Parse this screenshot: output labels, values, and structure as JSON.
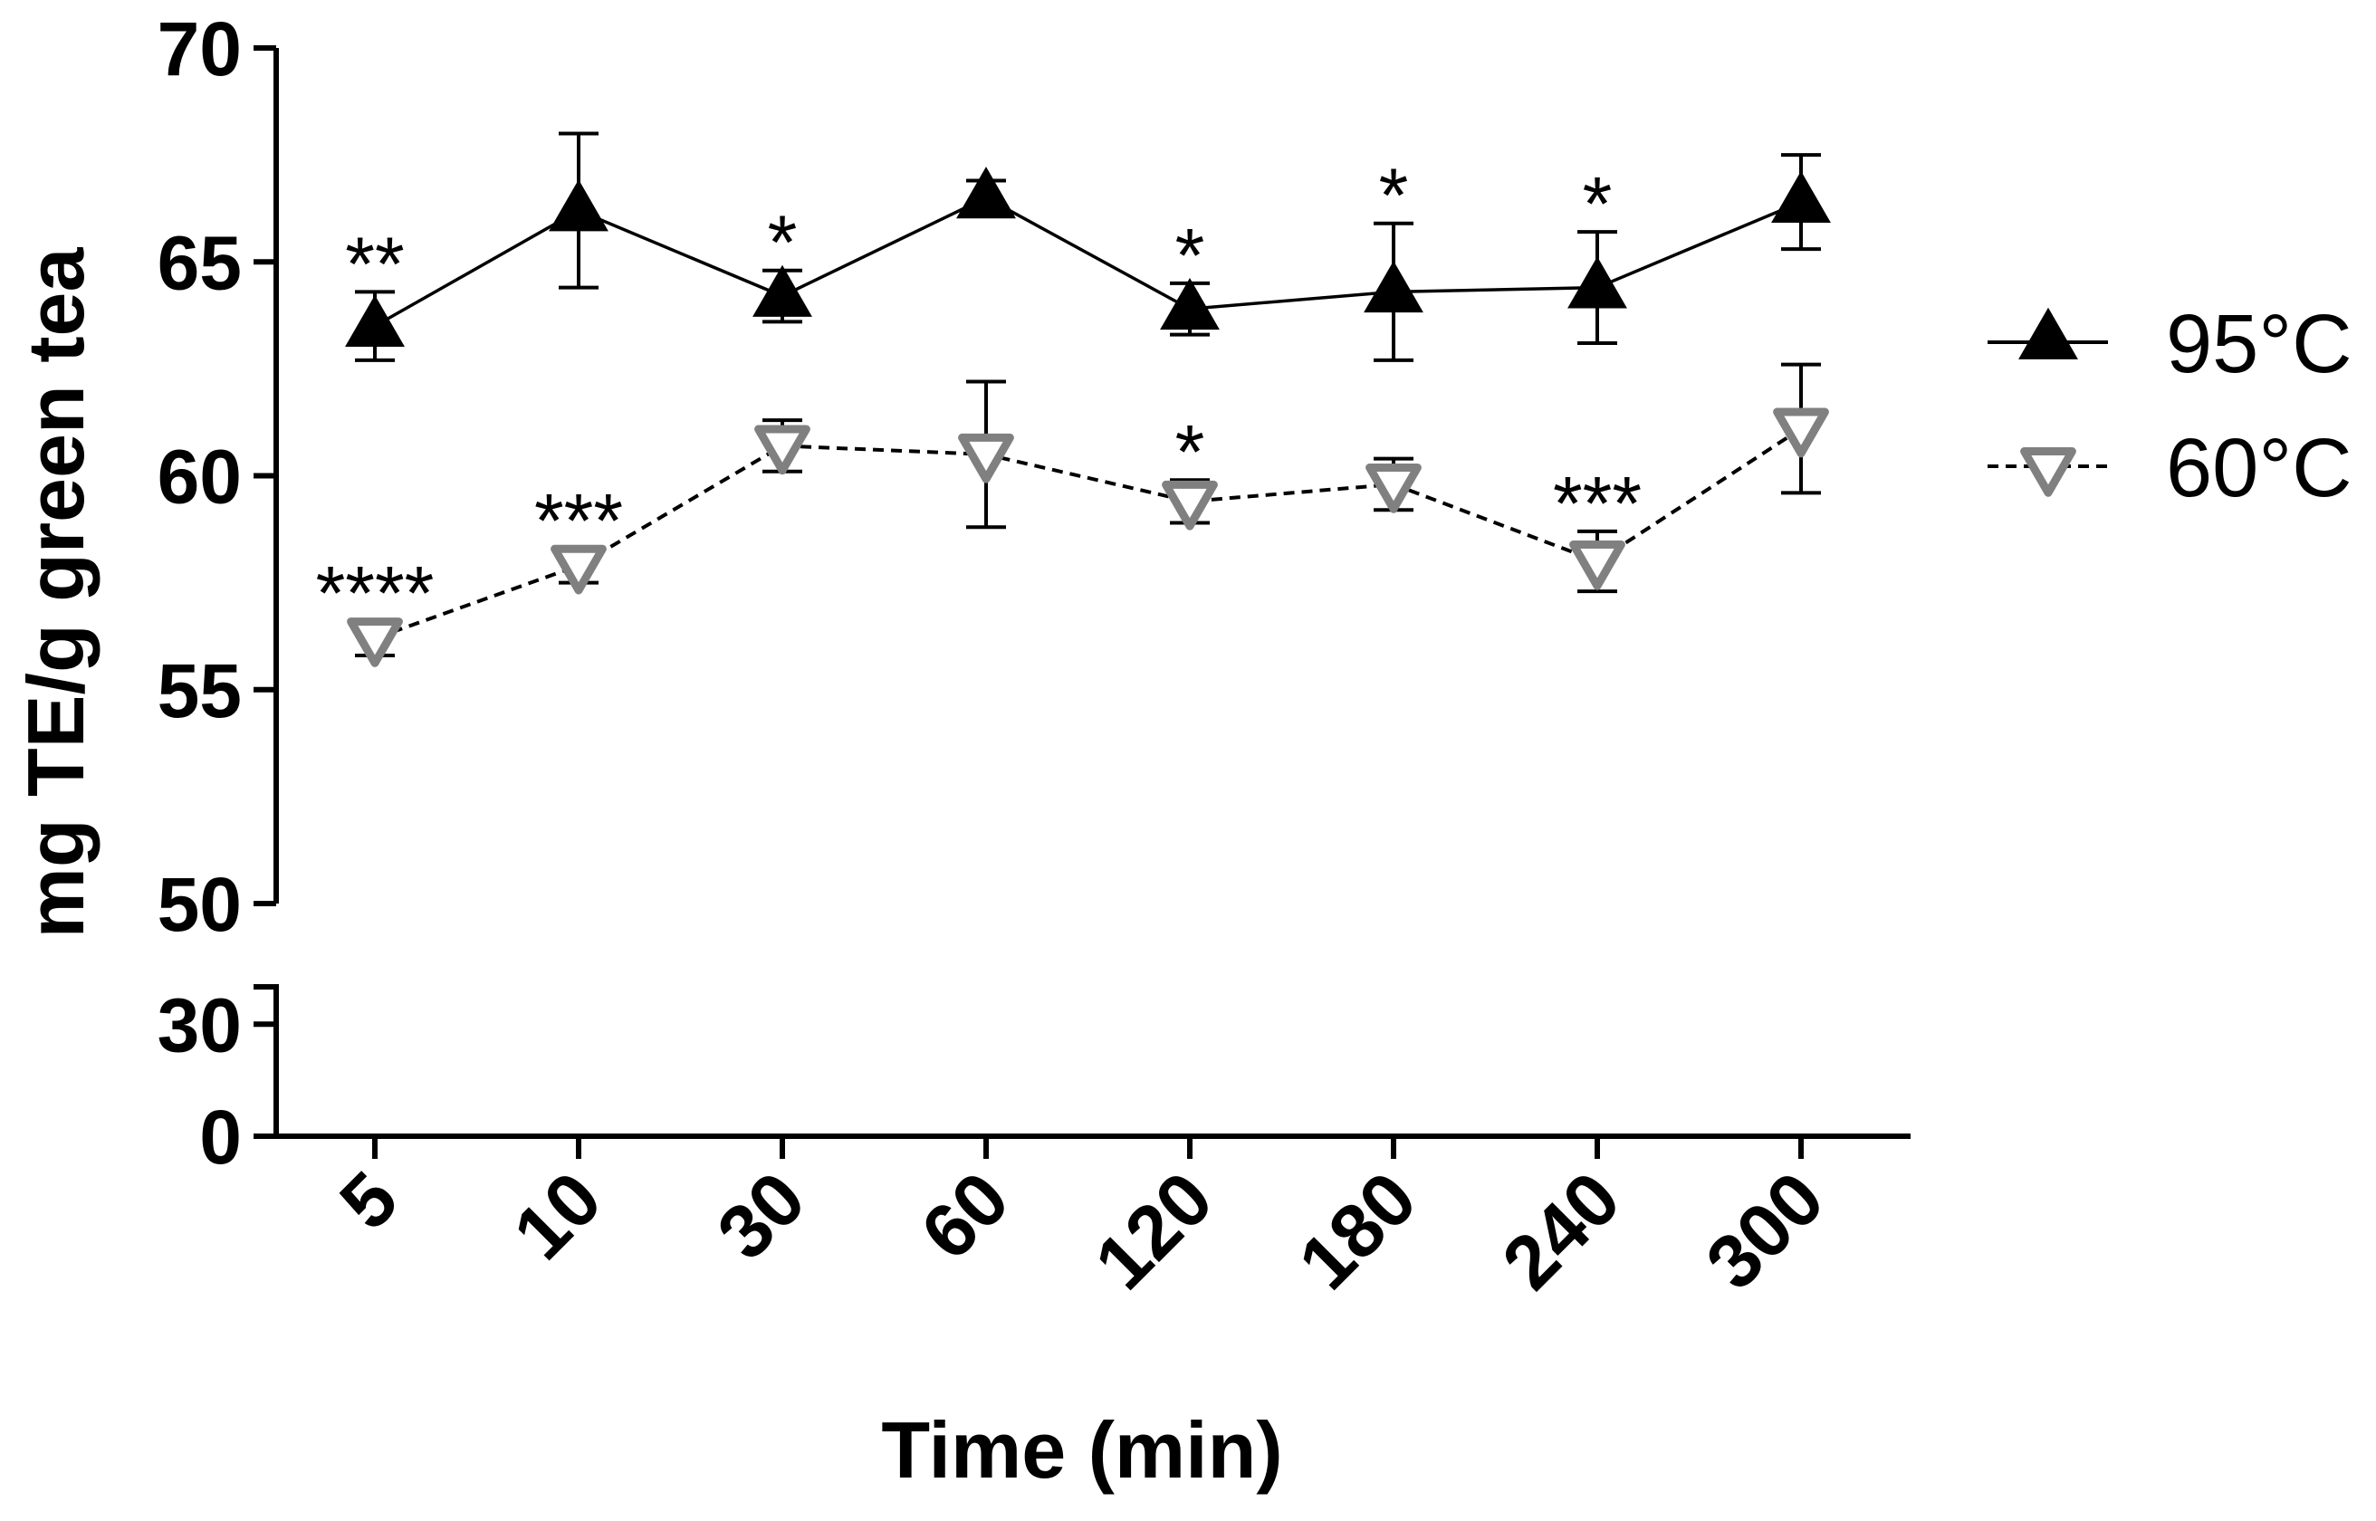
{
  "chart_data": {
    "type": "line",
    "title": "",
    "xlabel": "Time (min)",
    "ylabel": "mg TE/g green tea",
    "categories": [
      "5",
      "10",
      "30",
      "60",
      "120",
      "180",
      "240",
      "300"
    ],
    "y_axis_upper": {
      "range": [
        50,
        70
      ],
      "ticks": [
        "50",
        "55",
        "60",
        "65",
        "70"
      ]
    },
    "y_axis_lower": {
      "range": [
        0,
        40
      ],
      "ticks": [
        "0",
        "30"
      ]
    },
    "legend": {
      "position": "right"
    },
    "series": [
      {
        "name": "95°C",
        "color": "#000000",
        "marker": "triangle-up-filled",
        "line_style": "solid",
        "values": [
          63.5,
          66.2,
          64.2,
          66.5,
          63.9,
          64.3,
          64.4,
          66.4
        ],
        "errors": [
          0.8,
          1.8,
          0.6,
          0.4,
          0.6,
          1.6,
          1.3,
          1.1
        ],
        "significance": [
          "**",
          "",
          "*",
          "",
          "*",
          "*",
          "*",
          ""
        ]
      },
      {
        "name": "60°C",
        "color": "#808080",
        "marker": "triangle-down-open",
        "line_style": "dashed",
        "values": [
          56.2,
          57.9,
          60.7,
          60.5,
          59.4,
          59.8,
          58.0,
          61.1
        ],
        "errors": [
          0.4,
          0.4,
          0.6,
          1.7,
          0.5,
          0.6,
          0.7,
          1.5
        ],
        "significance": [
          "****",
          "***",
          "",
          "",
          "*",
          "",
          "***",
          ""
        ]
      }
    ]
  }
}
